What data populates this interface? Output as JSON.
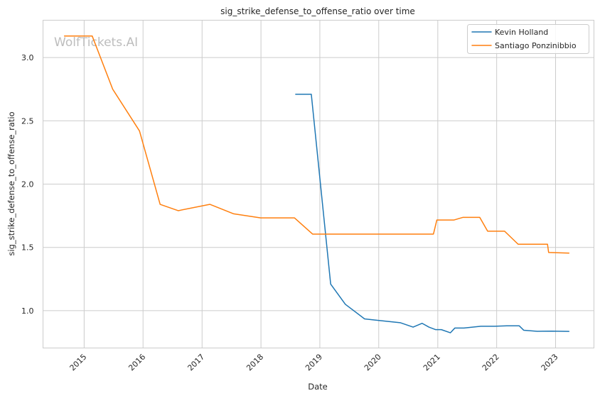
{
  "chart_data": {
    "type": "line",
    "title": "sig_strike_defense_to_offense_ratio over time",
    "xlabel": "Date",
    "ylabel": "sig_strike_defense_to_offense_ratio",
    "watermark": "WolfTickets.AI",
    "xlim": [
      "2014-04-21",
      "2023-08-27"
    ],
    "ylim": [
      0.705,
      3.295
    ],
    "x_ticks": [
      "2015-01-01",
      "2016-01-01",
      "2017-01-01",
      "2018-01-01",
      "2019-01-01",
      "2020-01-01",
      "2021-01-01",
      "2022-01-01",
      "2023-01-01"
    ],
    "x_tick_labels": [
      "2015",
      "2016",
      "2017",
      "2018",
      "2019",
      "2020",
      "2021",
      "2022",
      "2023"
    ],
    "y_ticks": [
      1.0,
      1.5,
      2.0,
      2.5,
      3.0
    ],
    "y_tick_labels": [
      "1.0",
      "1.5",
      "2.0",
      "2.5",
      "3.0"
    ],
    "grid": true,
    "legend_position": "top-right",
    "series": [
      {
        "name": "Kevin Holland",
        "color": "#1f77b4",
        "points": [
          {
            "x": "2018-08-04",
            "y": 2.71
          },
          {
            "x": "2018-11-09",
            "y": 2.71
          },
          {
            "x": "2019-03-09",
            "y": 1.21
          },
          {
            "x": "2019-06-08",
            "y": 1.05
          },
          {
            "x": "2019-10-05",
            "y": 0.935
          },
          {
            "x": "2019-12-14",
            "y": 0.925
          },
          {
            "x": "2020-05-13",
            "y": 0.905
          },
          {
            "x": "2020-08-01",
            "y": 0.87
          },
          {
            "x": "2020-09-26",
            "y": 0.9
          },
          {
            "x": "2020-11-07",
            "y": 0.87
          },
          {
            "x": "2020-12-19",
            "y": 0.85
          },
          {
            "x": "2021-01-23",
            "y": 0.85
          },
          {
            "x": "2021-03-20",
            "y": 0.825
          },
          {
            "x": "2021-04-17",
            "y": 0.863
          },
          {
            "x": "2021-06-12",
            "y": 0.863
          },
          {
            "x": "2021-09-25",
            "y": 0.877
          },
          {
            "x": "2021-12-18",
            "y": 0.877
          },
          {
            "x": "2022-03-05",
            "y": 0.88
          },
          {
            "x": "2022-05-21",
            "y": 0.88
          },
          {
            "x": "2022-06-18",
            "y": 0.845
          },
          {
            "x": "2022-09-10",
            "y": 0.837
          },
          {
            "x": "2022-12-10",
            "y": 0.838
          },
          {
            "x": "2023-03-25",
            "y": 0.836
          }
        ]
      },
      {
        "name": "Santiago Ponzinibbio",
        "color": "#ff7f0e",
        "points": [
          {
            "x": "2014-09-01",
            "y": 3.17
          },
          {
            "x": "2015-02-20",
            "y": 3.17
          },
          {
            "x": "2015-06-27",
            "y": 2.75
          },
          {
            "x": "2015-12-10",
            "y": 2.42
          },
          {
            "x": "2016-04-16",
            "y": 1.84
          },
          {
            "x": "2016-08-06",
            "y": 1.79
          },
          {
            "x": "2017-02-19",
            "y": 1.84
          },
          {
            "x": "2017-07-16",
            "y": 1.765
          },
          {
            "x": "2017-12-30",
            "y": 1.733
          },
          {
            "x": "2018-07-28",
            "y": 1.733
          },
          {
            "x": "2018-11-17",
            "y": 1.605
          },
          {
            "x": "2020-12-05",
            "y": 1.605
          },
          {
            "x": "2020-12-26",
            "y": 1.716
          },
          {
            "x": "2021-04-10",
            "y": 1.716
          },
          {
            "x": "2021-06-05",
            "y": 1.737
          },
          {
            "x": "2021-09-18",
            "y": 1.737
          },
          {
            "x": "2021-11-06",
            "y": 1.628
          },
          {
            "x": "2022-02-19",
            "y": 1.628
          },
          {
            "x": "2022-05-14",
            "y": 1.525
          },
          {
            "x": "2022-11-12",
            "y": 1.525
          },
          {
            "x": "2022-11-19",
            "y": 1.46
          },
          {
            "x": "2023-03-25",
            "y": 1.455
          }
        ]
      }
    ]
  }
}
